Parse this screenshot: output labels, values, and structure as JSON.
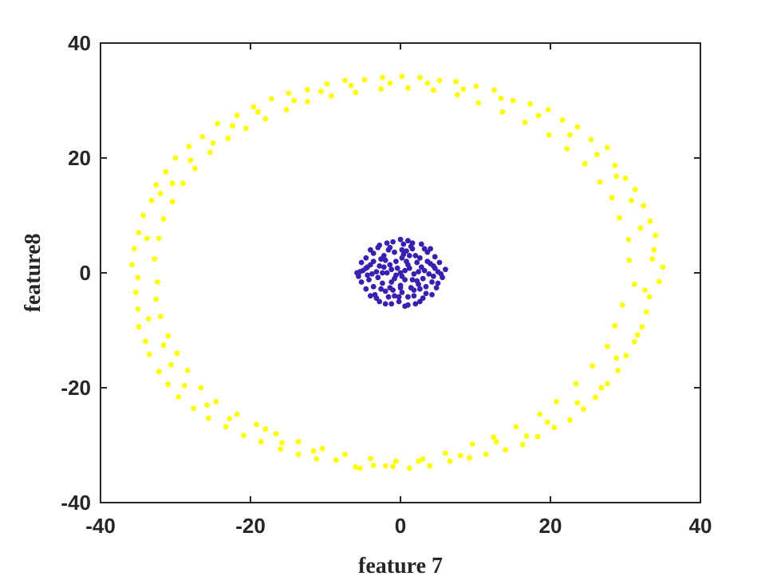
{
  "chart_data": {
    "type": "scatter",
    "title": "",
    "xlabel": "feature 7",
    "ylabel": "feature8",
    "xlim": [
      -40,
      40
    ],
    "ylim": [
      -40,
      40
    ],
    "x_ticks": [
      -40,
      -20,
      0,
      20,
      40
    ],
    "y_ticks": [
      -40,
      -20,
      0,
      20,
      40
    ],
    "x_tick_labels": [
      "-40",
      "-20",
      "0",
      "20",
      "40"
    ],
    "y_tick_labels": [
      "-40",
      "-20",
      "0",
      "20",
      "40"
    ],
    "grid": false,
    "series": [
      {
        "color": "#FFFF00",
        "points": [
          [
            35.0,
            1.0
          ],
          [
            34.5,
            -1.5
          ],
          [
            33.8,
            4.0
          ],
          [
            33.2,
            -4.2
          ],
          [
            34.0,
            6.5
          ],
          [
            32.8,
            -6.8
          ],
          [
            33.3,
            9.0
          ],
          [
            32.2,
            -9.4
          ],
          [
            32.4,
            11.7
          ],
          [
            31.2,
            -12.0
          ],
          [
            31.3,
            14.5
          ],
          [
            30.1,
            -14.4
          ],
          [
            30.0,
            16.5
          ],
          [
            29.0,
            -17.0
          ],
          [
            28.6,
            18.7
          ],
          [
            27.6,
            -19.3
          ],
          [
            27.6,
            21.8
          ],
          [
            26.0,
            -21.7
          ],
          [
            25.4,
            23.2
          ],
          [
            24.4,
            -23.7
          ],
          [
            23.6,
            25.4
          ],
          [
            22.6,
            -25.6
          ],
          [
            21.6,
            26.6
          ],
          [
            20.5,
            -26.9
          ],
          [
            19.7,
            28.4
          ],
          [
            18.3,
            -28.5
          ],
          [
            17.3,
            29.4
          ],
          [
            16.3,
            -29.9
          ],
          [
            15.0,
            30.0
          ],
          [
            14.0,
            -30.8
          ],
          [
            12.5,
            31.8
          ],
          [
            11.4,
            -31.6
          ],
          [
            10.1,
            32.5
          ],
          [
            9.2,
            -32.2
          ],
          [
            7.4,
            33.3
          ],
          [
            6.6,
            -32.8
          ],
          [
            5.2,
            33.5
          ],
          [
            3.9,
            -33.6
          ],
          [
            2.6,
            34.0
          ],
          [
            1.2,
            -34.0
          ],
          [
            0.2,
            34.2
          ],
          [
            -1.0,
            -33.7
          ],
          [
            -2.4,
            34.0
          ],
          [
            -3.6,
            -33.5
          ],
          [
            -4.8,
            33.6
          ],
          [
            -6.0,
            -33.8
          ],
          [
            -7.4,
            33.5
          ],
          [
            -8.6,
            -32.6
          ],
          [
            -9.8,
            32.9
          ],
          [
            -11.2,
            -32.4
          ],
          [
            -12.4,
            31.9
          ],
          [
            -13.6,
            -31.6
          ],
          [
            -14.9,
            31.3
          ],
          [
            -16.0,
            -30.7
          ],
          [
            -17.2,
            30.3
          ],
          [
            -18.6,
            -29.4
          ],
          [
            -19.6,
            28.9
          ],
          [
            -20.9,
            -28.3
          ],
          [
            -21.8,
            27.4
          ],
          [
            -23.3,
            -26.8
          ],
          [
            -24.4,
            26.0
          ],
          [
            -25.6,
            -25.3
          ],
          [
            -26.4,
            23.7
          ],
          [
            -27.6,
            -23.6
          ],
          [
            -28.2,
            22.0
          ],
          [
            -29.6,
            -21.6
          ],
          [
            -30.0,
            20.0
          ],
          [
            -31.0,
            -19.4
          ],
          [
            -31.3,
            17.6
          ],
          [
            -32.2,
            -17.2
          ],
          [
            -32.6,
            15.3
          ],
          [
            -33.5,
            -14.2
          ],
          [
            -33.2,
            12.6
          ],
          [
            -34.0,
            -11.9
          ],
          [
            -34.3,
            10.0
          ],
          [
            -34.9,
            -9.4
          ],
          [
            -34.9,
            7.0
          ],
          [
            -35.0,
            -6.3
          ],
          [
            -35.5,
            4.2
          ],
          [
            -35.3,
            -3.4
          ],
          [
            -35.8,
            1.4
          ],
          [
            -35.0,
            -0.8
          ],
          [
            30.5,
            2.2
          ],
          [
            31.2,
            -2.0
          ],
          [
            30.4,
            5.8
          ],
          [
            29.6,
            -5.6
          ],
          [
            29.2,
            9.6
          ],
          [
            28.6,
            -9.2
          ],
          [
            28.2,
            13.1
          ],
          [
            27.6,
            -12.8
          ],
          [
            26.6,
            15.8
          ],
          [
            25.6,
            -16.2
          ],
          [
            24.6,
            19.0
          ],
          [
            23.4,
            -19.3
          ],
          [
            22.2,
            21.6
          ],
          [
            20.8,
            -22.4
          ],
          [
            19.8,
            24.0
          ],
          [
            18.6,
            -24.6
          ],
          [
            16.6,
            26.2
          ],
          [
            15.4,
            -26.8
          ],
          [
            13.6,
            28.0
          ],
          [
            12.4,
            -28.6
          ],
          [
            10.4,
            29.6
          ],
          [
            9.6,
            -29.8
          ],
          [
            7.6,
            31.0
          ],
          [
            6.0,
            -31.4
          ],
          [
            4.4,
            31.8
          ],
          [
            3.0,
            -32.4
          ],
          [
            1.0,
            32.2
          ],
          [
            -0.6,
            -32.8
          ],
          [
            -2.6,
            32.0
          ],
          [
            -4.0,
            -32.3
          ],
          [
            -6.0,
            31.4
          ],
          [
            -7.4,
            -31.6
          ],
          [
            -9.2,
            30.8
          ],
          [
            -10.4,
            -30.6
          ],
          [
            -12.4,
            29.8
          ],
          [
            -13.6,
            -29.4
          ],
          [
            -15.2,
            28.4
          ],
          [
            -16.6,
            -28.0
          ],
          [
            -18.0,
            26.8
          ],
          [
            -19.2,
            -26.4
          ],
          [
            -20.6,
            25.2
          ],
          [
            -21.8,
            -24.6
          ],
          [
            -23.0,
            23.4
          ],
          [
            -24.6,
            -22.4
          ],
          [
            -25.4,
            21.0
          ],
          [
            -26.6,
            -20.0
          ],
          [
            -27.4,
            18.2
          ],
          [
            -28.4,
            -17.0
          ],
          [
            -29.0,
            15.6
          ],
          [
            -29.8,
            -14.0
          ],
          [
            -30.4,
            12.4
          ],
          [
            -31.0,
            -11.0
          ],
          [
            -31.6,
            9.4
          ],
          [
            -32.0,
            -7.6
          ],
          [
            -32.2,
            6.0
          ],
          [
            -32.6,
            -4.6
          ],
          [
            -32.8,
            2.4
          ],
          [
            -32.4,
            -1.6
          ],
          [
            33.6,
            2.4
          ],
          [
            32.6,
            -3.0
          ],
          [
            32.0,
            7.8
          ],
          [
            31.6,
            -10.8
          ],
          [
            30.8,
            12.6
          ],
          [
            28.8,
            -14.8
          ],
          [
            28.8,
            16.8
          ],
          [
            26.8,
            -20.0
          ],
          [
            26.2,
            20.6
          ],
          [
            23.6,
            -22.6
          ],
          [
            22.6,
            24.0
          ],
          [
            19.6,
            -26.0
          ],
          [
            18.4,
            27.4
          ],
          [
            16.8,
            -28.4
          ],
          [
            13.4,
            30.4
          ],
          [
            12.8,
            -29.4
          ],
          [
            8.4,
            32.0
          ],
          [
            8.0,
            -31.8
          ],
          [
            3.6,
            33.0
          ],
          [
            2.4,
            -32.8
          ],
          [
            -1.4,
            33.0
          ],
          [
            -2.0,
            -33.6
          ],
          [
            -6.6,
            32.6
          ],
          [
            -5.4,
            -34.0
          ],
          [
            -10.6,
            31.6
          ],
          [
            -11.6,
            -31.0
          ],
          [
            -14.2,
            30.0
          ],
          [
            -15.8,
            -29.6
          ],
          [
            -19.0,
            28.0
          ],
          [
            -18.0,
            -27.2
          ],
          [
            -22.4,
            25.6
          ],
          [
            -22.8,
            -25.4
          ],
          [
            -25.0,
            22.6
          ],
          [
            -25.8,
            -23.0
          ],
          [
            -28.0,
            19.6
          ],
          [
            -28.8,
            -19.6
          ],
          [
            -30.4,
            15.6
          ],
          [
            -30.6,
            -16.0
          ],
          [
            -32.0,
            13.8
          ],
          [
            -31.6,
            -12.6
          ],
          [
            -33.8,
            6.0
          ],
          [
            -33.6,
            -8.0
          ]
        ]
      },
      {
        "color": "#3A1FB0",
        "points": [
          [
            0.0,
            0.0
          ],
          [
            1.2,
            0.8
          ],
          [
            -1.2,
            0.6
          ],
          [
            0.6,
            -1.2
          ],
          [
            -0.8,
            -1.0
          ],
          [
            2.2,
            1.8
          ],
          [
            -2.0,
            2.2
          ],
          [
            2.4,
            -2.0
          ],
          [
            -2.4,
            -1.8
          ],
          [
            3.2,
            0.4
          ],
          [
            -3.2,
            0.2
          ],
          [
            0.4,
            3.2
          ],
          [
            0.2,
            -3.4
          ],
          [
            4.0,
            1.6
          ],
          [
            -4.0,
            1.4
          ],
          [
            4.2,
            -1.6
          ],
          [
            -4.2,
            -1.2
          ],
          [
            1.6,
            4.2
          ],
          [
            -1.6,
            4.0
          ],
          [
            1.8,
            -4.0
          ],
          [
            -1.6,
            -4.2
          ],
          [
            5.0,
            0.2
          ],
          [
            -5.0,
            0.4
          ],
          [
            0.4,
            5.0
          ],
          [
            -0.2,
            -5.0
          ],
          [
            3.6,
            3.6
          ],
          [
            -3.6,
            3.4
          ],
          [
            3.4,
            -3.6
          ],
          [
            -3.4,
            -3.8
          ],
          [
            5.6,
            -0.8
          ],
          [
            -5.6,
            -0.6
          ],
          [
            2.8,
            5.0
          ],
          [
            -2.8,
            4.8
          ],
          [
            2.6,
            -5.0
          ],
          [
            -2.8,
            -5.0
          ],
          [
            4.6,
            2.8
          ],
          [
            -4.6,
            2.6
          ],
          [
            4.8,
            -2.6
          ],
          [
            -4.6,
            -2.8
          ],
          [
            1.0,
            5.6
          ],
          [
            -1.0,
            5.4
          ],
          [
            1.0,
            -5.6
          ],
          [
            -1.2,
            -5.4
          ],
          [
            0.8,
            2.0
          ],
          [
            -0.6,
            2.0
          ],
          [
            1.8,
            -0.2
          ],
          [
            -1.8,
            0.0
          ],
          [
            0.0,
            -2.2
          ],
          [
            1.4,
            -2.6
          ],
          [
            -1.4,
            -2.6
          ],
          [
            2.8,
            1.0
          ],
          [
            -2.8,
            1.2
          ],
          [
            3.0,
            -1.0
          ],
          [
            -3.0,
            -0.8
          ],
          [
            2.0,
            3.0
          ],
          [
            -2.2,
            3.0
          ],
          [
            1.8,
            -3.0
          ],
          [
            -2.0,
            -3.2
          ],
          [
            3.8,
            -0.2
          ],
          [
            -3.8,
            -0.2
          ],
          [
            0.2,
            4.0
          ],
          [
            -0.2,
            -4.2
          ],
          [
            4.6,
            0.8
          ],
          [
            -4.6,
            0.8
          ],
          [
            4.4,
            -0.6
          ],
          [
            -4.4,
            -0.4
          ],
          [
            3.2,
            4.2
          ],
          [
            -3.0,
            4.4
          ],
          [
            3.0,
            -4.4
          ],
          [
            -3.2,
            -4.4
          ],
          [
            5.2,
            1.8
          ],
          [
            -5.2,
            1.8
          ],
          [
            5.0,
            -1.8
          ],
          [
            -5.2,
            -1.6
          ],
          [
            1.6,
            5.2
          ],
          [
            -1.8,
            5.2
          ],
          [
            2.0,
            -5.4
          ],
          [
            -2.0,
            -5.4
          ],
          [
            4.0,
            4.2
          ],
          [
            -4.0,
            4.0
          ],
          [
            4.2,
            -3.8
          ],
          [
            -4.0,
            -4.0
          ],
          [
            0.6,
            0.4
          ],
          [
            -0.4,
            0.8
          ],
          [
            0.2,
            -0.6
          ],
          [
            -0.6,
            -0.4
          ],
          [
            1.0,
            1.4
          ],
          [
            -1.4,
            1.4
          ],
          [
            1.6,
            -1.2
          ],
          [
            -1.2,
            -1.6
          ],
          [
            2.4,
            0.2
          ],
          [
            -2.4,
            0.0
          ],
          [
            0.2,
            2.6
          ],
          [
            0.0,
            -2.6
          ],
          [
            3.6,
            2.0
          ],
          [
            -3.6,
            2.0
          ],
          [
            3.4,
            -2.4
          ],
          [
            -3.6,
            -2.4
          ],
          [
            0.8,
            3.8
          ],
          [
            -0.8,
            3.6
          ],
          [
            1.0,
            -4.2
          ],
          [
            -0.8,
            -4.0
          ],
          [
            5.4,
            -0.2
          ],
          [
            -5.4,
            0.2
          ],
          [
            -1.0,
            -3.0
          ],
          [
            1.2,
            3.0
          ],
          [
            2.2,
            -1.4
          ],
          [
            -2.2,
            1.0
          ],
          [
            6.0,
            0.6
          ],
          [
            -5.8,
            0.0
          ],
          [
            0.0,
            5.8
          ],
          [
            0.6,
            -5.8
          ],
          [
            2.6,
            2.6
          ],
          [
            -2.6,
            2.4
          ],
          [
            2.6,
            -2.8
          ],
          [
            -2.6,
            -2.8
          ],
          [
            4.4,
            1.2
          ],
          [
            -4.4,
            1.0
          ],
          [
            1.4,
            4.6
          ],
          [
            -1.4,
            4.4
          ]
        ]
      }
    ]
  }
}
